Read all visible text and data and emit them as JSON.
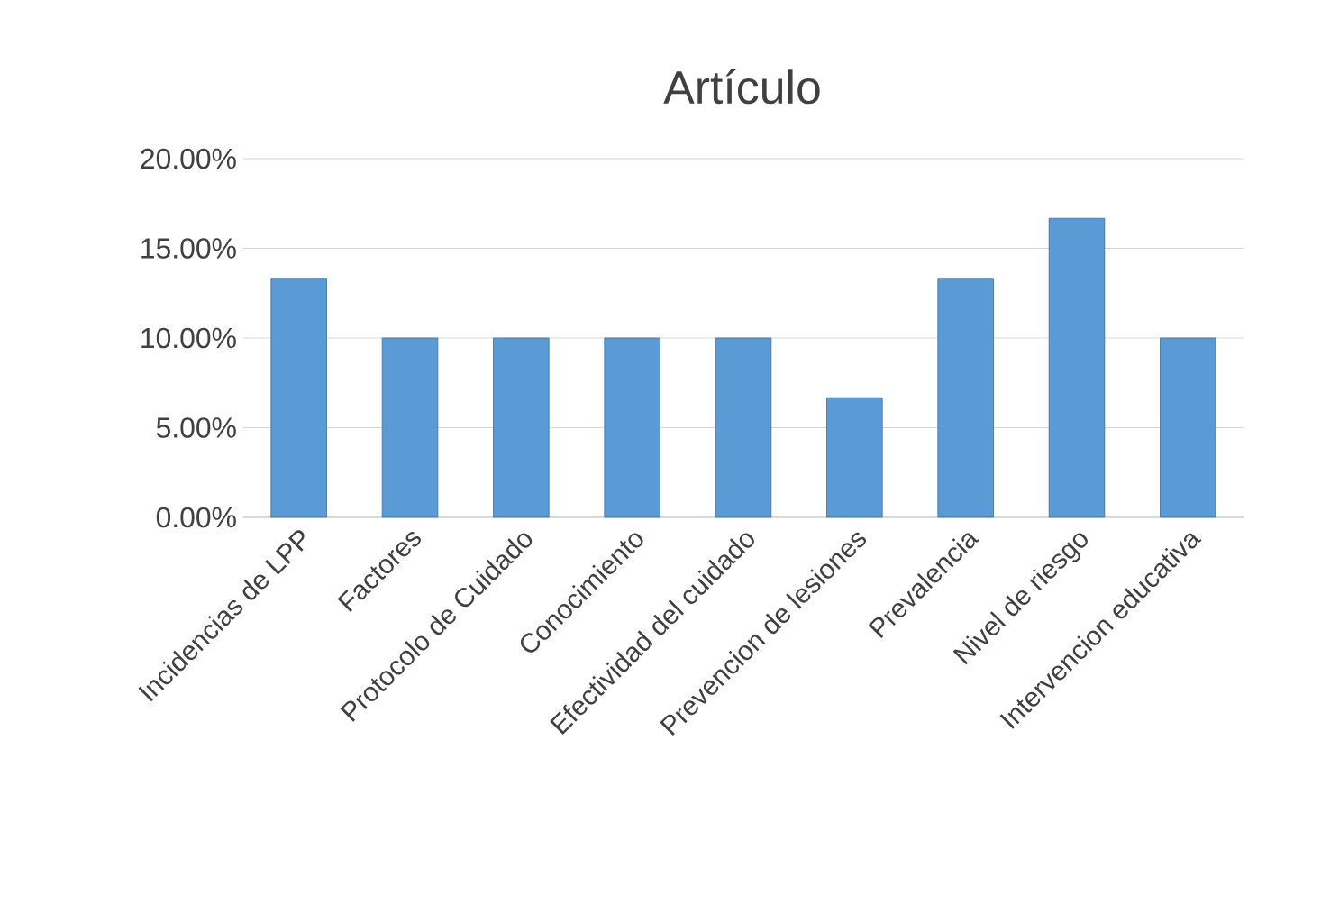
{
  "chart_data": {
    "type": "bar",
    "title": "Artículo",
    "categories": [
      "Incidencias de LPP",
      "Factores",
      "Protocolo de Cuidado",
      "Conocimiento",
      "Efectividad del cuidado",
      "Prevencion de lesiones",
      "Prevalencia",
      "Nivel de riesgo",
      "Intervencion educativa"
    ],
    "values": [
      13.33,
      10,
      10,
      10,
      10,
      6.67,
      13.33,
      16.67,
      10
    ],
    "color": "#5b9bd5",
    "ylim": [
      0,
      20
    ],
    "yticks": [
      {
        "value": 0,
        "label": "0.00%"
      },
      {
        "value": 5,
        "label": "5.00%"
      },
      {
        "value": 10,
        "label": "10.00%"
      },
      {
        "value": 15,
        "label": "15.00%"
      },
      {
        "value": 20,
        "label": "20.00%"
      }
    ],
    "grid": "y"
  }
}
